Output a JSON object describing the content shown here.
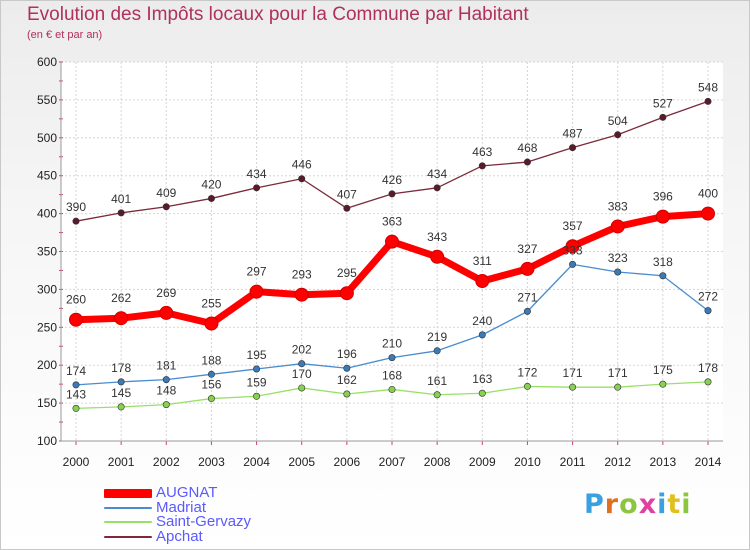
{
  "title": "Evolution des Impôts locaux pour la Commune par Habitant",
  "subtitle": "(en € et par an)",
  "logo": "Proxiti",
  "chart_data": {
    "type": "line",
    "title": "Evolution des Impôts locaux pour la Commune par Habitant",
    "subtitle": "(en € et par an)",
    "x": [
      "2000",
      "2001",
      "2002",
      "2003",
      "2004",
      "2005",
      "2006",
      "2007",
      "2008",
      "2009",
      "2010",
      "2011",
      "2012",
      "2013",
      "2014"
    ],
    "ylim": [
      100,
      600
    ],
    "yticks": [
      100,
      150,
      200,
      250,
      300,
      350,
      400,
      450,
      500,
      550,
      600
    ],
    "grid": true,
    "legend": "bottom-left",
    "series": [
      {
        "name": "AUGNAT",
        "color": "#ff0000",
        "values": [
          260,
          262,
          269,
          255,
          297,
          293,
          295,
          363,
          343,
          311,
          327,
          357,
          383,
          396,
          400
        ]
      },
      {
        "name": "Madriat",
        "color": "#4a8ccf",
        "values": [
          174,
          178,
          181,
          188,
          195,
          202,
          196,
          210,
          219,
          240,
          271,
          333,
          323,
          318,
          272
        ]
      },
      {
        "name": "Saint-Gervazy",
        "color": "#99e066",
        "values": [
          143,
          145,
          148,
          156,
          159,
          170,
          162,
          168,
          161,
          163,
          172,
          171,
          171,
          175,
          178
        ]
      },
      {
        "name": "Apchat",
        "color": "#7a2a3a",
        "values": [
          390,
          401,
          409,
          420,
          434,
          446,
          407,
          426,
          434,
          463,
          468,
          487,
          504,
          527,
          548
        ]
      }
    ]
  }
}
